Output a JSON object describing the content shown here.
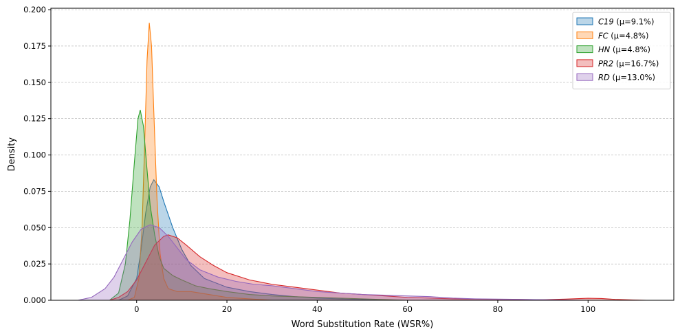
{
  "chart_data": {
    "type": "area",
    "xlabel": "Word Substitution Rate (WSR%)",
    "ylabel": "Density",
    "xlim": [
      -19,
      119
    ],
    "ylim": [
      0,
      0.201
    ],
    "xticks": [
      0,
      20,
      40,
      60,
      80,
      100
    ],
    "yticks": [
      0.0,
      0.025,
      0.05,
      0.075,
      0.1,
      0.125,
      0.15,
      0.175,
      0.2
    ],
    "ytick_labels": [
      "0.000",
      "0.025",
      "0.050",
      "0.075",
      "0.100",
      "0.125",
      "0.150",
      "0.175",
      "0.200"
    ],
    "xtick_labels": [
      "0",
      "20",
      "40",
      "60",
      "80",
      "100"
    ],
    "grid": "y-dashed",
    "legend_position": "top-right",
    "series": [
      {
        "name": "C19",
        "legend_rest": " (μ=9.1%)",
        "color": "#1f77b4",
        "points": [
          [
            -4,
            0
          ],
          [
            -2,
            0.003
          ],
          [
            0,
            0.015
          ],
          [
            1,
            0.035
          ],
          [
            2,
            0.06
          ],
          [
            3,
            0.078
          ],
          [
            3.8,
            0.083
          ],
          [
            5,
            0.078
          ],
          [
            6,
            0.068
          ],
          [
            8,
            0.05
          ],
          [
            10,
            0.035
          ],
          [
            12,
            0.024
          ],
          [
            15,
            0.015
          ],
          [
            20,
            0.009
          ],
          [
            25,
            0.006
          ],
          [
            30,
            0.004
          ],
          [
            35,
            0.0025
          ],
          [
            40,
            0.0015
          ],
          [
            45,
            0.001
          ],
          [
            50,
            0.0005
          ],
          [
            55,
            0
          ]
        ]
      },
      {
        "name": "FC",
        "legend_rest": " (μ=4.8%)",
        "color": "#ff7f0e",
        "points": [
          [
            -2,
            0
          ],
          [
            -0.5,
            0.002
          ],
          [
            0.5,
            0.015
          ],
          [
            1.2,
            0.05
          ],
          [
            1.8,
            0.11
          ],
          [
            2.3,
            0.165
          ],
          [
            2.8,
            0.191
          ],
          [
            3.3,
            0.175
          ],
          [
            3.8,
            0.13
          ],
          [
            4.5,
            0.07
          ],
          [
            5.2,
            0.032
          ],
          [
            6,
            0.015
          ],
          [
            7,
            0.008
          ],
          [
            9,
            0.006
          ],
          [
            12,
            0.006
          ],
          [
            14,
            0.005
          ],
          [
            16,
            0.004
          ],
          [
            20,
            0.002
          ],
          [
            25,
            0.001
          ],
          [
            30,
            0
          ]
        ]
      },
      {
        "name": "HN",
        "legend_rest": " (μ=4.8%)",
        "color": "#2ca02c",
        "points": [
          [
            -6,
            0
          ],
          [
            -4,
            0.005
          ],
          [
            -2.5,
            0.025
          ],
          [
            -1.5,
            0.055
          ],
          [
            -0.5,
            0.095
          ],
          [
            0.3,
            0.125
          ],
          [
            0.8,
            0.131
          ],
          [
            1.5,
            0.12
          ],
          [
            2.3,
            0.09
          ],
          [
            3,
            0.065
          ],
          [
            4,
            0.045
          ],
          [
            5,
            0.03
          ],
          [
            6,
            0.022
          ],
          [
            8,
            0.017
          ],
          [
            10,
            0.014
          ],
          [
            13,
            0.01
          ],
          [
            16,
            0.008
          ],
          [
            20,
            0.006
          ],
          [
            25,
            0.004
          ],
          [
            30,
            0.003
          ],
          [
            40,
            0.002
          ],
          [
            50,
            0.001
          ],
          [
            60,
            0
          ]
        ]
      },
      {
        "name": "PR2",
        "legend_rest": " (μ=16.7%)",
        "color": "#d62728",
        "points": [
          [
            -6,
            0
          ],
          [
            -4,
            0.002
          ],
          [
            -2,
            0.006
          ],
          [
            0,
            0.014
          ],
          [
            2,
            0.026
          ],
          [
            4,
            0.038
          ],
          [
            6,
            0.044
          ],
          [
            7,
            0.045
          ],
          [
            9,
            0.043
          ],
          [
            11,
            0.038
          ],
          [
            14,
            0.03
          ],
          [
            17,
            0.024
          ],
          [
            20,
            0.019
          ],
          [
            25,
            0.014
          ],
          [
            30,
            0.011
          ],
          [
            35,
            0.009
          ],
          [
            40,
            0.007
          ],
          [
            45,
            0.005
          ],
          [
            50,
            0.004
          ],
          [
            55,
            0.003
          ],
          [
            60,
            0.002
          ],
          [
            65,
            0.0015
          ],
          [
            70,
            0.001
          ],
          [
            75,
            0.0008
          ],
          [
            80,
            0.0006
          ],
          [
            85,
            0.0005
          ],
          [
            90,
            0.0004
          ],
          [
            95,
            0.0008
          ],
          [
            100,
            0.0014
          ],
          [
            103,
            0.0012
          ],
          [
            106,
            0.0006
          ],
          [
            110,
            0.0002
          ],
          [
            113,
            0
          ]
        ]
      },
      {
        "name": "RD",
        "legend_rest": " (μ=13.0%)",
        "color": "#9467bd",
        "points": [
          [
            -13,
            0
          ],
          [
            -10,
            0.002
          ],
          [
            -7,
            0.008
          ],
          [
            -5,
            0.016
          ],
          [
            -3,
            0.028
          ],
          [
            -1,
            0.04
          ],
          [
            1,
            0.049
          ],
          [
            3,
            0.052
          ],
          [
            5,
            0.05
          ],
          [
            7,
            0.044
          ],
          [
            9,
            0.036
          ],
          [
            11,
            0.028
          ],
          [
            14,
            0.021
          ],
          [
            18,
            0.016
          ],
          [
            22,
            0.013
          ],
          [
            26,
            0.011
          ],
          [
            30,
            0.01
          ],
          [
            35,
            0.008
          ],
          [
            40,
            0.006
          ],
          [
            45,
            0.005
          ],
          [
            50,
            0.004
          ],
          [
            55,
            0.0035
          ],
          [
            60,
            0.003
          ],
          [
            65,
            0.0025
          ],
          [
            70,
            0.0015
          ],
          [
            75,
            0.001
          ],
          [
            80,
            0.0008
          ],
          [
            85,
            0.0006
          ],
          [
            90,
            0.0004
          ],
          [
            95,
            0.0002
          ],
          [
            100,
            0
          ]
        ]
      }
    ]
  }
}
